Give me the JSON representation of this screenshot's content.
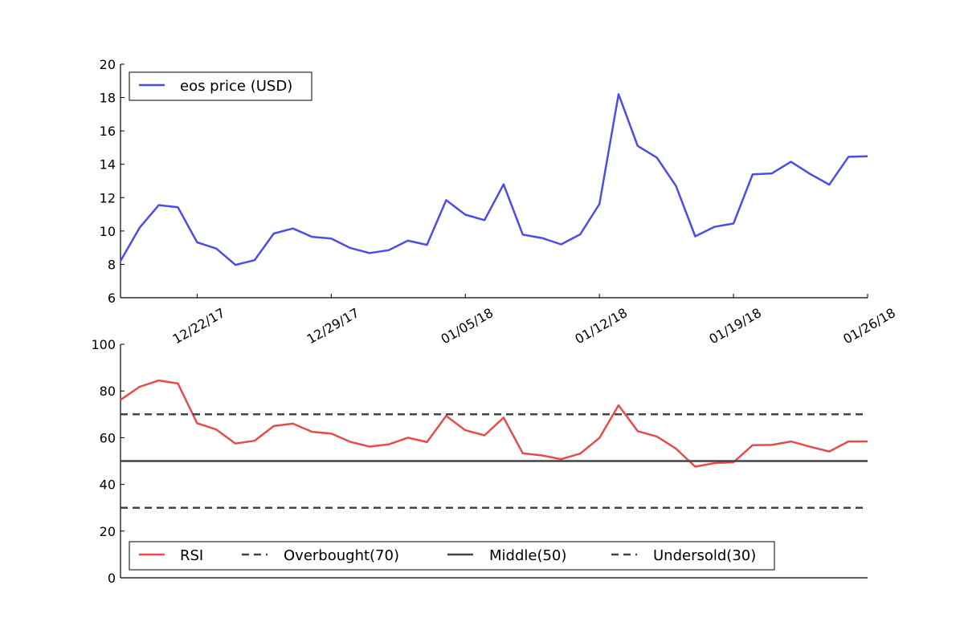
{
  "chart_data": [
    {
      "type": "line",
      "title": "",
      "xlabel": "",
      "ylabel": "",
      "ylim": [
        6,
        20
      ],
      "yticks": [
        6,
        8,
        10,
        12,
        14,
        16,
        18,
        20
      ],
      "x_start": "2017-12-18",
      "x_end": "2018-01-26",
      "xtick_labels": [
        "12/22/17",
        "12/29/17",
        "01/05/18",
        "01/12/18",
        "01/19/18",
        "01/26/18"
      ],
      "xtick_dates": [
        "2017-12-22",
        "2017-12-29",
        "2018-01-05",
        "2018-01-12",
        "2018-01-19",
        "2018-01-26"
      ],
      "legend_position": "top-left",
      "series": [
        {
          "name": "eos price (USD)",
          "color": "#4c4ce6",
          "x": [
            "2017-12-18",
            "2017-12-19",
            "2017-12-20",
            "2017-12-21",
            "2017-12-22",
            "2017-12-23",
            "2017-12-24",
            "2017-12-25",
            "2017-12-26",
            "2017-12-27",
            "2017-12-28",
            "2017-12-29",
            "2017-12-30",
            "2017-12-31",
            "2018-01-01",
            "2018-01-02",
            "2018-01-03",
            "2018-01-04",
            "2018-01-05",
            "2018-01-06",
            "2018-01-07",
            "2018-01-08",
            "2018-01-09",
            "2018-01-10",
            "2018-01-11",
            "2018-01-12",
            "2018-01-13",
            "2018-01-14",
            "2018-01-15",
            "2018-01-16",
            "2018-01-17",
            "2018-01-18",
            "2018-01-19",
            "2018-01-20",
            "2018-01-21",
            "2018-01-22",
            "2018-01-23",
            "2018-01-24",
            "2018-01-25",
            "2018-01-26"
          ],
          "values": [
            8.2,
            10.2,
            11.55,
            11.42,
            9.32,
            8.95,
            7.97,
            8.25,
            9.85,
            10.15,
            9.65,
            9.55,
            8.98,
            8.68,
            8.85,
            9.42,
            9.17,
            11.85,
            10.98,
            10.65,
            12.8,
            9.78,
            9.58,
            9.2,
            9.8,
            11.62,
            18.2,
            15.1,
            14.4,
            12.7,
            9.68,
            10.25,
            10.45,
            13.4,
            13.45,
            14.15,
            13.42,
            12.78,
            14.45,
            14.48
          ]
        }
      ]
    },
    {
      "type": "line",
      "title": "",
      "xlabel": "",
      "ylabel": "",
      "ylim": [
        0,
        100
      ],
      "yticks": [
        0,
        20,
        40,
        60,
        80,
        100
      ],
      "x_start": "2017-12-18",
      "x_end": "2018-01-26",
      "legend_position": "bottom-left",
      "series": [
        {
          "name": "RSI",
          "color": "#e64c4c",
          "style": "solid",
          "x": [
            "2017-12-18",
            "2017-12-19",
            "2017-12-20",
            "2017-12-21",
            "2017-12-22",
            "2017-12-23",
            "2017-12-24",
            "2017-12-25",
            "2017-12-26",
            "2017-12-27",
            "2017-12-28",
            "2017-12-29",
            "2017-12-30",
            "2017-12-31",
            "2018-01-01",
            "2018-01-02",
            "2018-01-03",
            "2018-01-04",
            "2018-01-05",
            "2018-01-06",
            "2018-01-07",
            "2018-01-08",
            "2018-01-09",
            "2018-01-10",
            "2018-01-11",
            "2018-01-12",
            "2018-01-13",
            "2018-01-14",
            "2018-01-15",
            "2018-01-16",
            "2018-01-17",
            "2018-01-18",
            "2018-01-19",
            "2018-01-20",
            "2018-01-21",
            "2018-01-22",
            "2018-01-23",
            "2018-01-24",
            "2018-01-25",
            "2018-01-26"
          ],
          "values": [
            76.2,
            81.8,
            84.5,
            83.2,
            66.2,
            63.5,
            57.5,
            58.7,
            65.0,
            66.0,
            62.5,
            61.8,
            58.2,
            56.2,
            57.1,
            60.0,
            58.1,
            69.3,
            63.2,
            61.0,
            68.6,
            53.3,
            52.4,
            50.8,
            53.2,
            59.9,
            73.9,
            62.8,
            60.5,
            55.3,
            47.6,
            49.1,
            49.5,
            56.8,
            56.9,
            58.4,
            56.1,
            54.1,
            58.4,
            58.4
          ]
        },
        {
          "name": "Overbought(70)",
          "color": "#444444",
          "style": "dashed",
          "constant": 70
        },
        {
          "name": "Middle(50)",
          "color": "#444444",
          "style": "solid",
          "constant": 50
        },
        {
          "name": "Undersold(30)",
          "color": "#444444",
          "style": "dashed",
          "constant": 30
        }
      ]
    }
  ]
}
